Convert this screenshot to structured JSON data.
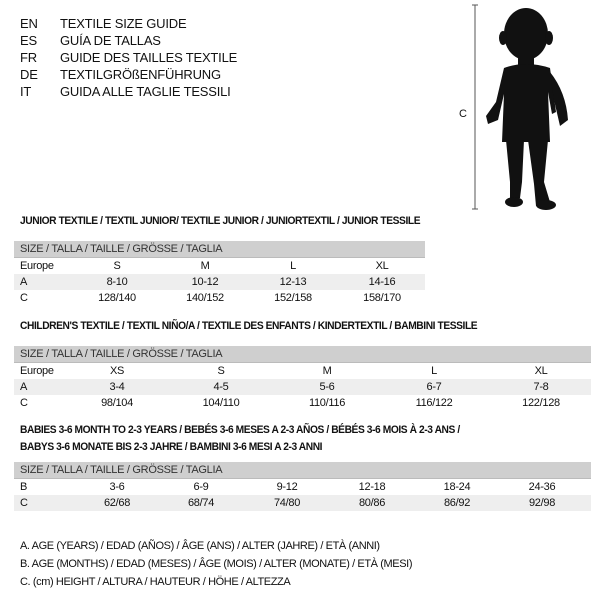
{
  "header": {
    "languages": [
      {
        "code": "EN",
        "title": "TEXTILE SIZE GUIDE"
      },
      {
        "code": "ES",
        "title": "GUÍA DE TALLAS"
      },
      {
        "code": "FR",
        "title": "GUIDE DES TAILLES TEXTILE"
      },
      {
        "code": "DE",
        "title": "TEXTILGRÖßENFÜHRUNG"
      },
      {
        "code": "IT",
        "title": "GUIDA ALLE TAGLIE TESSILI"
      }
    ]
  },
  "figure": {
    "measure_label": "C",
    "icon": "child-silhouette-icon"
  },
  "size_header": "SIZE / TALLA / TAILLE / GRÖSSE / TAGLIA",
  "junior": {
    "title": "JUNIOR TEXTILE / TEXTIL JUNIOR/ TEXTILE JUNIOR / JUNIORTEXTIL / JUNIOR TESSILE",
    "rows": [
      {
        "label": "Europe",
        "values": [
          "S",
          "M",
          "L",
          "XL"
        ]
      },
      {
        "label": "A",
        "values": [
          "8-10",
          "10-12",
          "12-13",
          "14-16"
        ]
      },
      {
        "label": "C",
        "values": [
          "128/140",
          "140/152",
          "152/158",
          "158/170"
        ]
      }
    ]
  },
  "children": {
    "title": "CHILDREN'S TEXTILE / TEXTIL NIÑO/A / TEXTILE DES ENFANTS / KINDERTEXTIL / BAMBINI TESSILE",
    "rows": [
      {
        "label": "Europe",
        "values": [
          "XS",
          "S",
          "M",
          "L",
          "XL"
        ]
      },
      {
        "label": "A",
        "values": [
          "3-4",
          "4-5",
          "5-6",
          "6-7",
          "7-8"
        ]
      },
      {
        "label": "C",
        "values": [
          "98/104",
          "104/110",
          "110/116",
          "116/122",
          "122/128"
        ]
      }
    ]
  },
  "babies": {
    "title_line1": "BABIES 3-6 MONTH TO 2-3 YEARS / BEBÉS 3-6 MESES A 2-3 AÑOS / BÉBÉS 3-6 MOIS À 2-3 ANS /",
    "title_line2": "BABYS 3-6 MONATE BIS 2-3 JAHRE / BAMBINI 3-6 MESI A 2-3 ANNI",
    "rows": [
      {
        "label": "B",
        "values": [
          "3-6",
          "6-9",
          "9-12",
          "12-18",
          "18-24",
          "24-36"
        ]
      },
      {
        "label": "C",
        "values": [
          "62/68",
          "68/74",
          "74/80",
          "80/86",
          "86/92",
          "92/98"
        ]
      }
    ]
  },
  "legend": [
    "A. AGE (YEARS) / EDAD (AÑOS) / ÂGE (ANS) / ALTER (JAHRE) / ETÀ (ANNI)",
    "B. AGE (MONTHS) / EDAD (MESES) / ÂGE (MOIS) / ALTER (MONATE) / ETÀ (MESI)",
    "C. (cm) HEIGHT / ALTURA / HAUTEUR / HÖHE / ALTEZZA"
  ]
}
